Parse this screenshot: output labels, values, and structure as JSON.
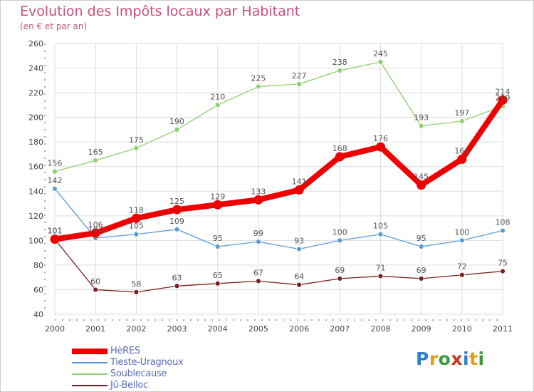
{
  "title": "Evolution des Impôts locaux par Habitant",
  "subtitle": "(en € et par an)",
  "logo_text": "Proxiti",
  "colors": {
    "title": "#d04a7a",
    "grid": "#dddddd",
    "axis": "#c8245a"
  },
  "chart_data": {
    "type": "line",
    "title": "Evolution des Impôts locaux par Habitant",
    "ylabel": "(en € et par an)",
    "xlabel": "",
    "x": [
      "2000",
      "2001",
      "2002",
      "2003",
      "2004",
      "2005",
      "2006",
      "2007",
      "2008",
      "2009",
      "2010",
      "2011"
    ],
    "ylim": [
      40,
      260
    ],
    "yticks": [
      40,
      60,
      80,
      100,
      120,
      140,
      160,
      180,
      200,
      220,
      240,
      260
    ],
    "grid": true,
    "legend_position": "bottom-left",
    "series": [
      {
        "name": "HèRES",
        "color": "#ee0000",
        "line_width": "thick",
        "values": [
          101,
          106,
          118,
          125,
          129,
          133,
          141,
          168,
          176,
          145,
          166,
          214
        ]
      },
      {
        "name": "Tieste-Uragnoux",
        "color": "#5b9bd5",
        "line_width": "thin",
        "values": [
          142,
          102,
          105,
          109,
          95,
          99,
          93,
          100,
          105,
          95,
          100,
          108
        ]
      },
      {
        "name": "Soublecause",
        "color": "#8fd070",
        "line_width": "thin",
        "values": [
          156,
          165,
          175,
          190,
          210,
          225,
          227,
          238,
          245,
          193,
          197,
          209
        ]
      },
      {
        "name": "Jû-Belloc",
        "color": "#7a2020",
        "line_width": "thin",
        "values": [
          101,
          60,
          58,
          63,
          65,
          67,
          64,
          69,
          71,
          69,
          72,
          75
        ]
      }
    ]
  }
}
